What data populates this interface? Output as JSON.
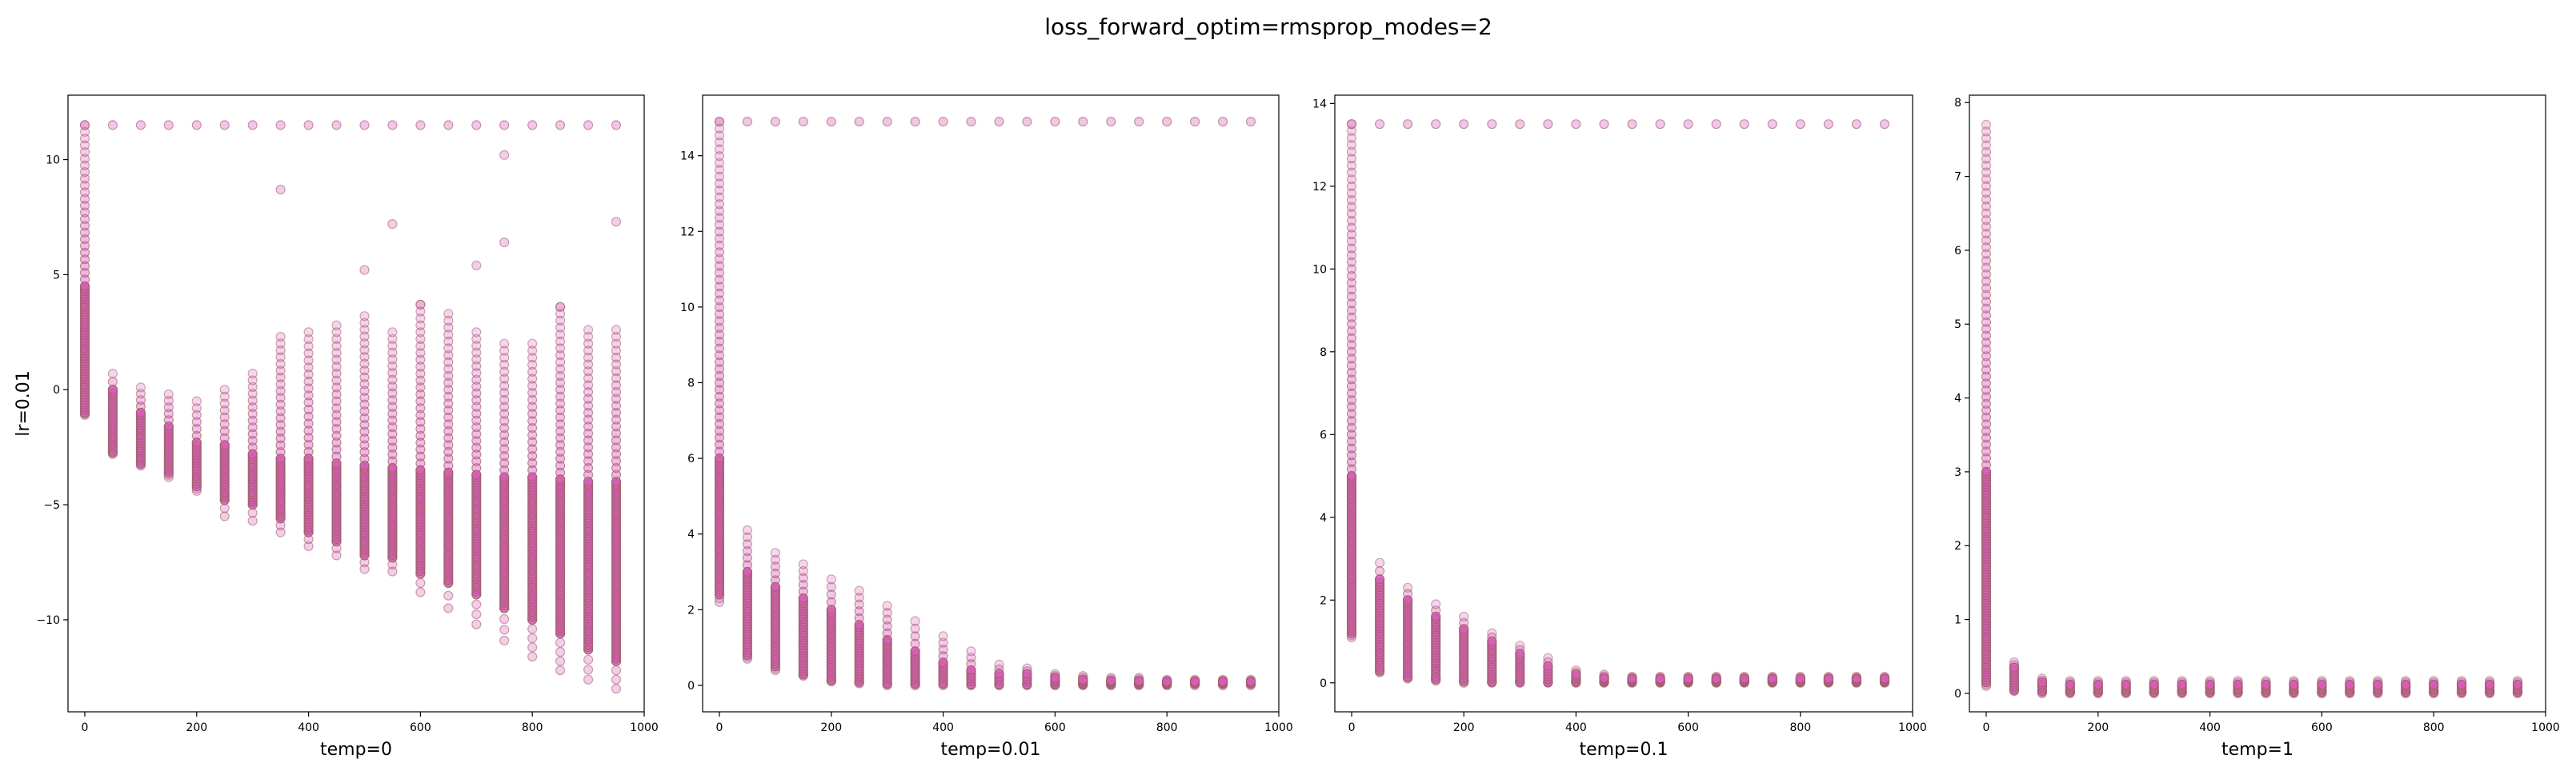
{
  "figure": {
    "title": "loss_forward_optim=rmsprop_modes=2",
    "colors": {
      "fill": "#d85cb7",
      "edge": "#a0606c",
      "frame": "#000000"
    }
  },
  "chart_data": [
    {
      "type": "scatter",
      "title": "",
      "xlabel": "temp=0",
      "ylabel": "lr=0.01",
      "xlim": [
        -30,
        1000
      ],
      "ylim": [
        -14,
        12.8
      ],
      "xticks": [
        0,
        200,
        400,
        600,
        800,
        1000
      ],
      "yticks": [
        -10,
        -5,
        0,
        5,
        10
      ],
      "grid": false,
      "x": [
        0,
        50,
        100,
        150,
        200,
        250,
        300,
        350,
        400,
        450,
        500,
        550,
        600,
        650,
        700,
        750,
        800,
        850,
        900,
        950
      ],
      "series": [
        {
          "core_low": [
            -1.0,
            -2.7,
            -3.2,
            -3.6,
            -4.2,
            -4.8,
            -5.0,
            -5.6,
            -6.2,
            -6.6,
            -7.2,
            -7.3,
            -8.0,
            -8.4,
            -8.9,
            -9.5,
            -10.0,
            -10.6,
            -11.3,
            -11.8
          ],
          "core_high": [
            4.5,
            0.0,
            -1.0,
            -1.6,
            -2.3,
            -2.4,
            -2.8,
            -3.0,
            -3.0,
            -3.2,
            -3.3,
            -3.4,
            -3.5,
            -3.6,
            -3.7,
            -3.8,
            -3.8,
            -3.9,
            -4.0,
            -4.0
          ],
          "min": [
            -1.1,
            -2.8,
            -3.3,
            -3.8,
            -4.4,
            -5.5,
            -5.7,
            -6.2,
            -6.8,
            -7.2,
            -7.8,
            -7.9,
            -8.8,
            -9.5,
            -10.2,
            -10.9,
            -11.6,
            -12.2,
            -12.6,
            -13.0
          ],
          "max": [
            11.5,
            0.7,
            0.1,
            -0.2,
            -0.5,
            0.0,
            0.7,
            2.3,
            2.5,
            2.8,
            3.2,
            2.5,
            3.7,
            3.3,
            2.5,
            2.0,
            2.0,
            3.6,
            2.6,
            2.6
          ],
          "outliers": [
            [
              350,
              8.7
            ],
            [
              550,
              7.2
            ],
            [
              500,
              5.2
            ],
            [
              700,
              5.4
            ],
            [
              750,
              6.4
            ],
            [
              750,
              10.2
            ],
            [
              950,
              7.3
            ],
            [
              600,
              3.7
            ],
            [
              850,
              3.6
            ]
          ],
          "flat_y": 11.5
        }
      ]
    },
    {
      "type": "scatter",
      "title": "",
      "xlabel": "temp=0.01",
      "ylabel": "",
      "xlim": [
        -30,
        1000
      ],
      "ylim": [
        -0.7,
        15.6
      ],
      "xticks": [
        0,
        200,
        400,
        600,
        800,
        1000
      ],
      "yticks": [
        0,
        2,
        4,
        6,
        8,
        10,
        12,
        14
      ],
      "grid": false,
      "x": [
        0,
        50,
        100,
        150,
        200,
        250,
        300,
        350,
        400,
        450,
        500,
        550,
        600,
        650,
        700,
        750,
        800,
        850,
        900,
        950
      ],
      "series": [
        {
          "core_low": [
            2.4,
            0.8,
            0.5,
            0.3,
            0.15,
            0.1,
            0.05,
            0.05,
            0.05,
            0.03,
            0.03,
            0.03,
            0.03,
            0.03,
            0.03,
            0.03,
            0.03,
            0.05,
            0.05,
            0.05
          ],
          "core_high": [
            6.0,
            3.0,
            2.6,
            2.3,
            2.0,
            1.6,
            1.2,
            0.9,
            0.6,
            0.4,
            0.3,
            0.3,
            0.2,
            0.15,
            0.12,
            0.12,
            0.1,
            0.1,
            0.1,
            0.1
          ],
          "min": [
            2.2,
            0.7,
            0.4,
            0.25,
            0.1,
            0.05,
            0.0,
            0.0,
            0.0,
            0.0,
            0.0,
            0.0,
            0.0,
            0.0,
            0.0,
            0.0,
            0.0,
            0.0,
            0.0,
            0.0
          ],
          "max": [
            14.9,
            4.1,
            3.5,
            3.2,
            2.8,
            2.5,
            2.1,
            1.7,
            1.3,
            0.9,
            0.55,
            0.45,
            0.3,
            0.25,
            0.2,
            0.2,
            0.15,
            0.15,
            0.15,
            0.15
          ],
          "outliers": [],
          "flat_y": 14.9
        }
      ]
    },
    {
      "type": "scatter",
      "title": "",
      "xlabel": "temp=0.1",
      "ylabel": "",
      "xlim": [
        -30,
        1000
      ],
      "ylim": [
        -0.7,
        14.2
      ],
      "xticks": [
        0,
        200,
        400,
        600,
        800,
        1000
      ],
      "yticks": [
        0,
        2,
        4,
        6,
        8,
        10,
        12,
        14
      ],
      "grid": false,
      "x": [
        0,
        50,
        100,
        150,
        200,
        250,
        300,
        350,
        400,
        450,
        500,
        550,
        600,
        650,
        700,
        750,
        800,
        850,
        900,
        950
      ],
      "series": [
        {
          "core_low": [
            1.2,
            0.3,
            0.15,
            0.1,
            0.05,
            0.03,
            0.02,
            0.02,
            0.02,
            0.02,
            0.02,
            0.02,
            0.02,
            0.02,
            0.02,
            0.02,
            0.02,
            0.02,
            0.02,
            0.02
          ],
          "core_high": [
            5.0,
            2.5,
            2.0,
            1.6,
            1.3,
            1.0,
            0.7,
            0.4,
            0.2,
            0.12,
            0.1,
            0.1,
            0.1,
            0.1,
            0.1,
            0.1,
            0.1,
            0.1,
            0.1,
            0.1
          ],
          "min": [
            1.1,
            0.25,
            0.1,
            0.05,
            0.0,
            0.0,
            0.0,
            0.0,
            0.0,
            0.0,
            0.0,
            0.0,
            0.0,
            0.0,
            0.0,
            0.0,
            0.0,
            0.0,
            0.0,
            0.0
          ],
          "max": [
            13.5,
            2.9,
            2.3,
            1.9,
            1.6,
            1.2,
            0.9,
            0.6,
            0.3,
            0.2,
            0.15,
            0.15,
            0.15,
            0.15,
            0.15,
            0.15,
            0.15,
            0.15,
            0.15,
            0.15
          ],
          "outliers": [],
          "flat_y": 13.5
        }
      ]
    },
    {
      "type": "scatter",
      "title": "",
      "xlabel": "temp=1",
      "ylabel": "",
      "xlim": [
        -30,
        1000
      ],
      "ylim": [
        -0.25,
        8.1
      ],
      "xticks": [
        0,
        200,
        400,
        600,
        800,
        1000
      ],
      "yticks": [
        0,
        1,
        2,
        3,
        4,
        5,
        6,
        7,
        8
      ],
      "grid": false,
      "x": [
        0,
        50,
        100,
        150,
        200,
        250,
        300,
        350,
        400,
        450,
        500,
        550,
        600,
        650,
        700,
        750,
        800,
        850,
        900,
        950
      ],
      "series": [
        {
          "core_low": [
            0.15,
            0.05,
            0.03,
            0.02,
            0.02,
            0.02,
            0.02,
            0.02,
            0.02,
            0.02,
            0.02,
            0.02,
            0.02,
            0.02,
            0.02,
            0.02,
            0.02,
            0.02,
            0.02,
            0.02
          ],
          "core_high": [
            3.0,
            0.35,
            0.15,
            0.12,
            0.12,
            0.12,
            0.12,
            0.12,
            0.12,
            0.12,
            0.12,
            0.12,
            0.12,
            0.12,
            0.12,
            0.12,
            0.12,
            0.12,
            0.12,
            0.12
          ],
          "min": [
            0.1,
            0.03,
            0.0,
            0.0,
            0.0,
            0.0,
            0.0,
            0.0,
            0.0,
            0.0,
            0.0,
            0.0,
            0.0,
            0.0,
            0.0,
            0.0,
            0.0,
            0.0,
            0.0,
            0.0
          ],
          "max": [
            7.7,
            0.42,
            0.2,
            0.17,
            0.17,
            0.17,
            0.17,
            0.17,
            0.17,
            0.17,
            0.17,
            0.17,
            0.17,
            0.17,
            0.17,
            0.17,
            0.17,
            0.17,
            0.17,
            0.17
          ],
          "outliers": [],
          "flat_y": null
        }
      ]
    }
  ]
}
